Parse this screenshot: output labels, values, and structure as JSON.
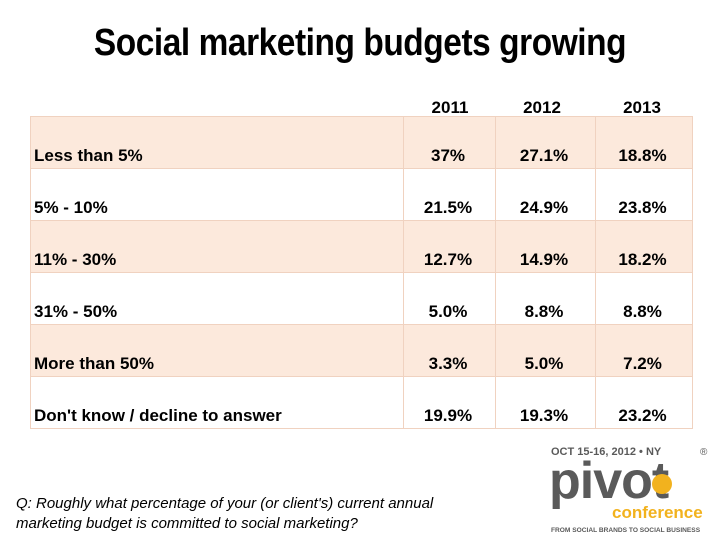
{
  "chart_data": {
    "type": "table",
    "title": "Social marketing budgets growing",
    "columns": [
      "2011",
      "2012",
      "2013"
    ],
    "rows": [
      {
        "label": "Less than 5%",
        "values": [
          "37%",
          "27.1%",
          "18.8%"
        ]
      },
      {
        "label": "5% - 10%",
        "values": [
          "21.5%",
          "24.9%",
          "23.8%"
        ]
      },
      {
        "label": "11% - 30%",
        "values": [
          "12.7%",
          "14.9%",
          "18.2%"
        ]
      },
      {
        "label": "31% - 50%",
        "values": [
          "5.0%",
          "8.8%",
          "8.8%"
        ]
      },
      {
        "label": "More than 50%",
        "values": [
          "3.3%",
          "5.0%",
          "7.2%"
        ]
      },
      {
        "label": "Don't know / decline to answer",
        "values": [
          "19.9%",
          "19.3%",
          "23.2%"
        ]
      }
    ],
    "colors": {
      "shaded_row": "#fce9dc",
      "grid": "#f0d2c0"
    }
  },
  "question": "Q: Roughly what percentage of your (or client's) current annual marketing budget is committed to social marketing?",
  "logo": {
    "date_line": "OCT 15-16, 2012 • NY",
    "name": "pivot",
    "subtitle": "conference",
    "tagline": "FROM SOCIAL BRANDS TO SOCIAL BUSINESS",
    "registered": "®",
    "colors": {
      "dark": "#5a5a5a",
      "accent": "#f2b21e"
    }
  }
}
